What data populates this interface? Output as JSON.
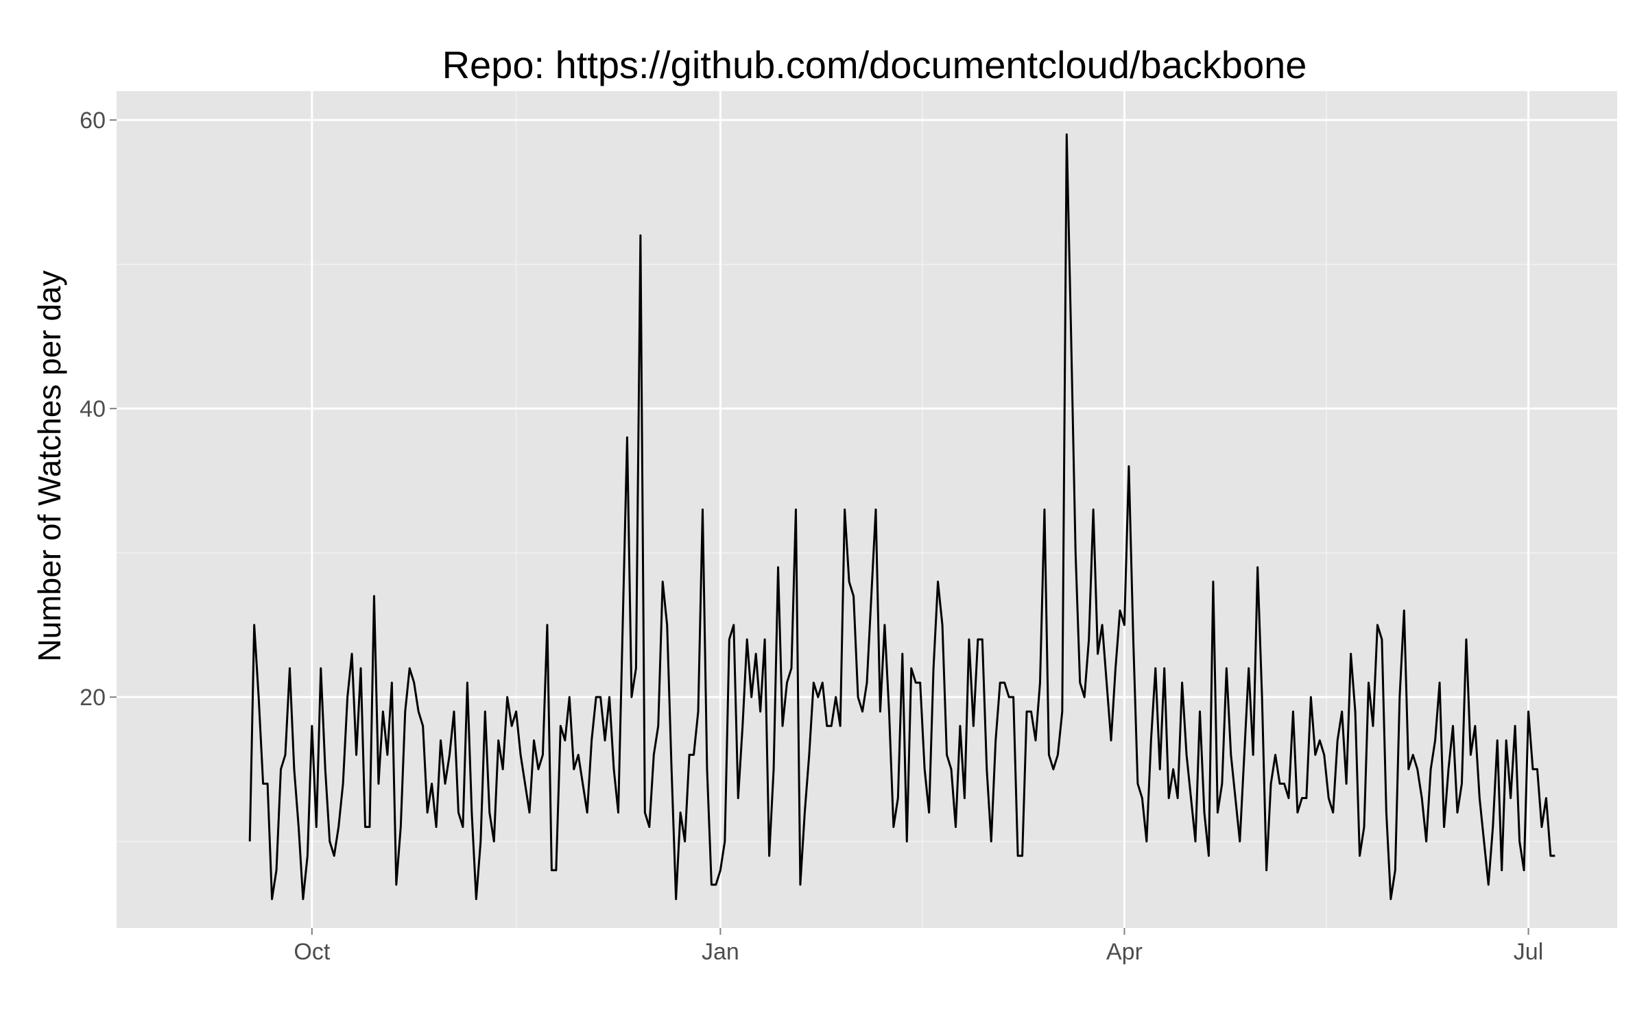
{
  "chart_data": {
    "type": "line",
    "title": "Repo: https://github.com/documentcloud/backbone",
    "xlabel": "",
    "ylabel": "Number of Watches per day",
    "x_ticks": [
      {
        "label": "Oct",
        "date": "2011-10-01"
      },
      {
        "label": "Jan",
        "date": "2012-01-01"
      },
      {
        "label": "Apr",
        "date": "2012-04-01"
      },
      {
        "label": "Jul",
        "date": "2012-07-01"
      }
    ],
    "y_ticks": [
      20,
      40,
      60
    ],
    "ylim": [
      4,
      62
    ],
    "xlim": [
      "2011-08-18",
      "2012-07-21"
    ],
    "grid": true,
    "colors": {
      "panel": "#e5e5e5",
      "grid": "#ffffff",
      "line": "#000000",
      "tick_text": "#4d4d4d"
    },
    "series": [
      {
        "start_date": "2011-09-17",
        "values": [
          10,
          25,
          20,
          14,
          14,
          6,
          8,
          15,
          16,
          22,
          15,
          11,
          6,
          9,
          18,
          11,
          22,
          15,
          10,
          9,
          11,
          14,
          20,
          23,
          16,
          22,
          11,
          11,
          27,
          14,
          19,
          16,
          21,
          7,
          11,
          19,
          22,
          21,
          19,
          18,
          12,
          14,
          11,
          17,
          14,
          16,
          19,
          12,
          11,
          21,
          12,
          6,
          10,
          19,
          12,
          10,
          17,
          15,
          20,
          18,
          19,
          16,
          14,
          12,
          17,
          15,
          16,
          25,
          8,
          8,
          18,
          17,
          20,
          15,
          16,
          14,
          12,
          17,
          20,
          20,
          17,
          20,
          15,
          12,
          25,
          38,
          20,
          22,
          52,
          12,
          11,
          16,
          18,
          28,
          25,
          15,
          6,
          12,
          10,
          16,
          16,
          19,
          33,
          15,
          7,
          7,
          8,
          10,
          24,
          25,
          13,
          18,
          24,
          20,
          23,
          19,
          24,
          9,
          15,
          29,
          18,
          21,
          22,
          33,
          7,
          12,
          16,
          21,
          20,
          21,
          18,
          18,
          20,
          18,
          33,
          28,
          27,
          20,
          19,
          21,
          27,
          33,
          19,
          25,
          19,
          11,
          13,
          23,
          10,
          22,
          21,
          21,
          15,
          12,
          22,
          28,
          25,
          16,
          15,
          11,
          18,
          13,
          24,
          18,
          24,
          24,
          15,
          10,
          17,
          21,
          21,
          20,
          20,
          9,
          9,
          19,
          19,
          17,
          21,
          33,
          16,
          15,
          16,
          19,
          59,
          45,
          30,
          21,
          20,
          24,
          33,
          23,
          25,
          21,
          17,
          22,
          26,
          25,
          36,
          24,
          14,
          13,
          10,
          17,
          22,
          15,
          22,
          13,
          15,
          13,
          21,
          16,
          13,
          10,
          19,
          12,
          9,
          28,
          12,
          14,
          22,
          16,
          13,
          10,
          16,
          22,
          16,
          29,
          20,
          8,
          14,
          16,
          14,
          14,
          13,
          19,
          12,
          13,
          13,
          20,
          16,
          17,
          16,
          13,
          12,
          17,
          19,
          14,
          23,
          19,
          9,
          11,
          21,
          18,
          25,
          24,
          12,
          6,
          8,
          20,
          26,
          15,
          16,
          15,
          13,
          10,
          15,
          17,
          21,
          11,
          15,
          18,
          12,
          14,
          24,
          16,
          18,
          13,
          10,
          7,
          11,
          17,
          8,
          17,
          13,
          18,
          10,
          8,
          19,
          15,
          15,
          11,
          13,
          9,
          9
        ]
      }
    ]
  }
}
